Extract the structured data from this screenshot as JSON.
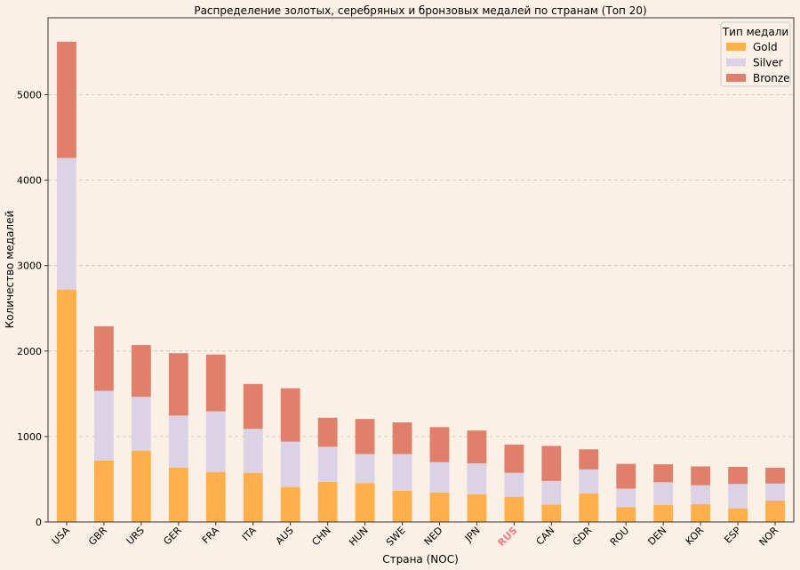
{
  "chart_data": {
    "type": "bar",
    "stacked": true,
    "title": "Распределение золотых, серебряных и бронзовых медалей по странам (Топ 20)",
    "xlabel": "Страна (NOC)",
    "ylabel": "Количество медалей",
    "ylim": [
      0,
      5900
    ],
    "yticks": [
      0,
      1000,
      2000,
      3000,
      4000,
      5000
    ],
    "grid": "y-dashed",
    "categories": [
      "USA",
      "GBR",
      "URS",
      "GER",
      "FRA",
      "ITA",
      "AUS",
      "CHN",
      "HUN",
      "SWE",
      "NED",
      "JPN",
      "RUS",
      "CAN",
      "GDR",
      "ROU",
      "DEN",
      "KOR",
      "ESP",
      "NOR"
    ],
    "highlight_category": "RUS",
    "highlight_color": "#f08080",
    "series": [
      {
        "name": "Gold",
        "color": "#ffb04a",
        "values": [
          2720,
          720,
          835,
          635,
          585,
          575,
          410,
          470,
          455,
          365,
          345,
          325,
          295,
          205,
          335,
          175,
          200,
          210,
          160,
          250
        ]
      },
      {
        "name": "Silver",
        "color": "#dcd2e6",
        "values": [
          1540,
          815,
          630,
          610,
          710,
          515,
          530,
          410,
          340,
          430,
          355,
          360,
          280,
          275,
          280,
          215,
          265,
          220,
          285,
          200
        ]
      },
      {
        "name": "Bronze",
        "color": "#e07f6a",
        "values": [
          1360,
          755,
          605,
          730,
          665,
          525,
          625,
          340,
          410,
          370,
          410,
          385,
          330,
          410,
          235,
          290,
          210,
          220,
          200,
          185
        ]
      }
    ],
    "legend": {
      "title": "Тип медали",
      "position": "top-right"
    }
  }
}
